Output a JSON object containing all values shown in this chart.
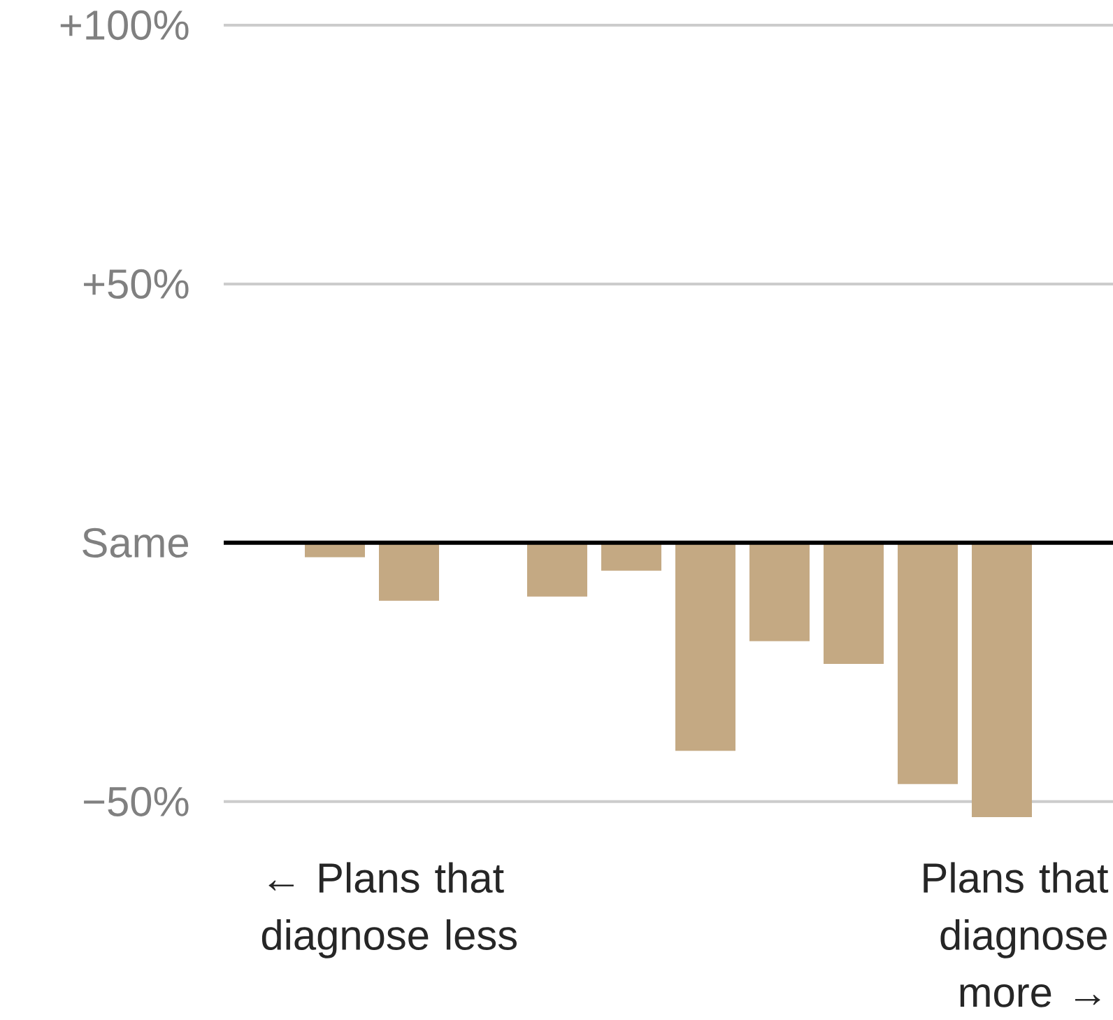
{
  "chart_data": {
    "type": "bar",
    "categories": [
      null,
      null,
      null,
      null,
      null,
      null,
      null,
      null,
      null,
      null,
      null,
      null
    ],
    "values": [
      0,
      -2.8,
      -11.2,
      0,
      -10.4,
      -5.4,
      -40.2,
      -19.0,
      -23.4,
      -46.6,
      -53.0,
      0
    ],
    "ylim": [
      -53,
      100
    ],
    "color": "#c4a983",
    "yticks": [
      {
        "value": 100,
        "label": "+100%"
      },
      {
        "value": 50,
        "label": "+50%"
      },
      {
        "value": 0,
        "label": "Same"
      },
      {
        "value": -50,
        "label": "−50%"
      }
    ],
    "grid": "y",
    "ref_lines": [
      {
        "axis": "y",
        "value": 0,
        "color": "#000000"
      }
    ],
    "annotations": [
      "← Plans that diagnose less",
      "Plans that diagnose more →"
    ]
  }
}
